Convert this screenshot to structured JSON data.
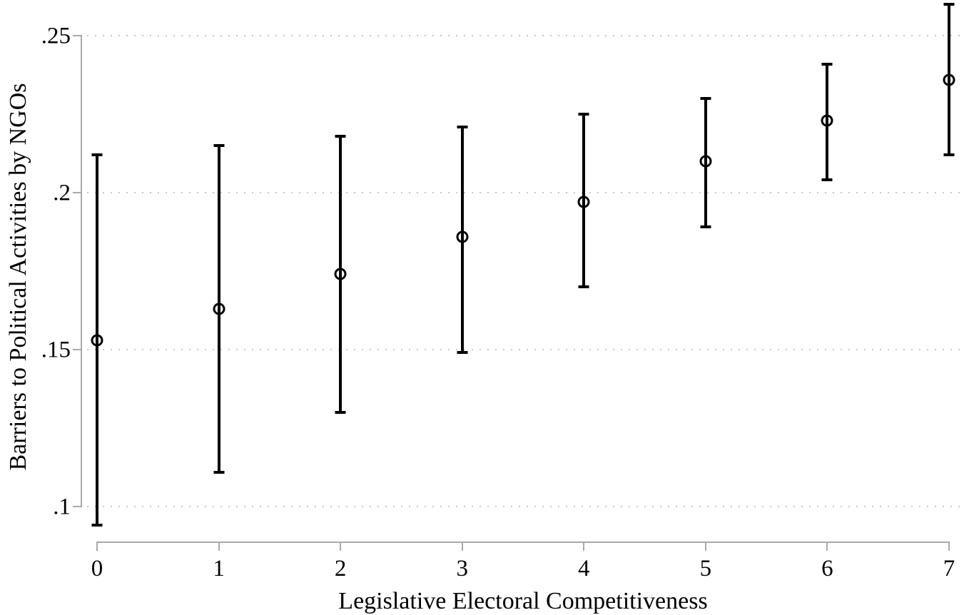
{
  "chart_data": {
    "type": "scatter",
    "subtype": "point-estimates-with-error-bars",
    "title": "",
    "xlabel": "Legislative Electoral Competitiveness",
    "ylabel": "Barriers to Political Activities by NGOs",
    "x": [
      0,
      1,
      2,
      3,
      4,
      5,
      6,
      7
    ],
    "points": [
      {
        "x": 0,
        "estimate": 0.153,
        "ci_low": 0.094,
        "ci_high": 0.212
      },
      {
        "x": 1,
        "estimate": 0.163,
        "ci_low": 0.111,
        "ci_high": 0.215
      },
      {
        "x": 2,
        "estimate": 0.174,
        "ci_low": 0.13,
        "ci_high": 0.218
      },
      {
        "x": 3,
        "estimate": 0.186,
        "ci_low": 0.149,
        "ci_high": 0.221
      },
      {
        "x": 4,
        "estimate": 0.197,
        "ci_low": 0.17,
        "ci_high": 0.225
      },
      {
        "x": 5,
        "estimate": 0.21,
        "ci_low": 0.189,
        "ci_high": 0.23
      },
      {
        "x": 6,
        "estimate": 0.223,
        "ci_low": 0.204,
        "ci_high": 0.241
      },
      {
        "x": 7,
        "estimate": 0.236,
        "ci_low": 0.212,
        "ci_high": 0.26
      }
    ],
    "xticks": [
      {
        "label": "0",
        "value": 0
      },
      {
        "label": "1",
        "value": 1
      },
      {
        "label": "2",
        "value": 2
      },
      {
        "label": "3",
        "value": 3
      },
      {
        "label": "4",
        "value": 4
      },
      {
        "label": "5",
        "value": 5
      },
      {
        "label": "6",
        "value": 6
      },
      {
        "label": "7",
        "value": 7
      }
    ],
    "yticks": [
      {
        "label": ".25",
        "value": 0.25
      },
      {
        "label": ".2",
        "value": 0.2
      },
      {
        "label": ".15",
        "value": 0.15
      },
      {
        "label": ".1",
        "value": 0.1
      }
    ],
    "xlim": [
      0,
      7
    ],
    "ylim": [
      0.09,
      0.262
    ],
    "grid": {
      "horizontal": true,
      "vertical": false,
      "style": "dotted"
    },
    "legend": "none",
    "marker": "open-circle",
    "colors": {
      "data": "#000000",
      "axis": "#a9a9a9",
      "grid": "#c9c9c9",
      "background": "#ffffff",
      "text": "#000000"
    }
  }
}
